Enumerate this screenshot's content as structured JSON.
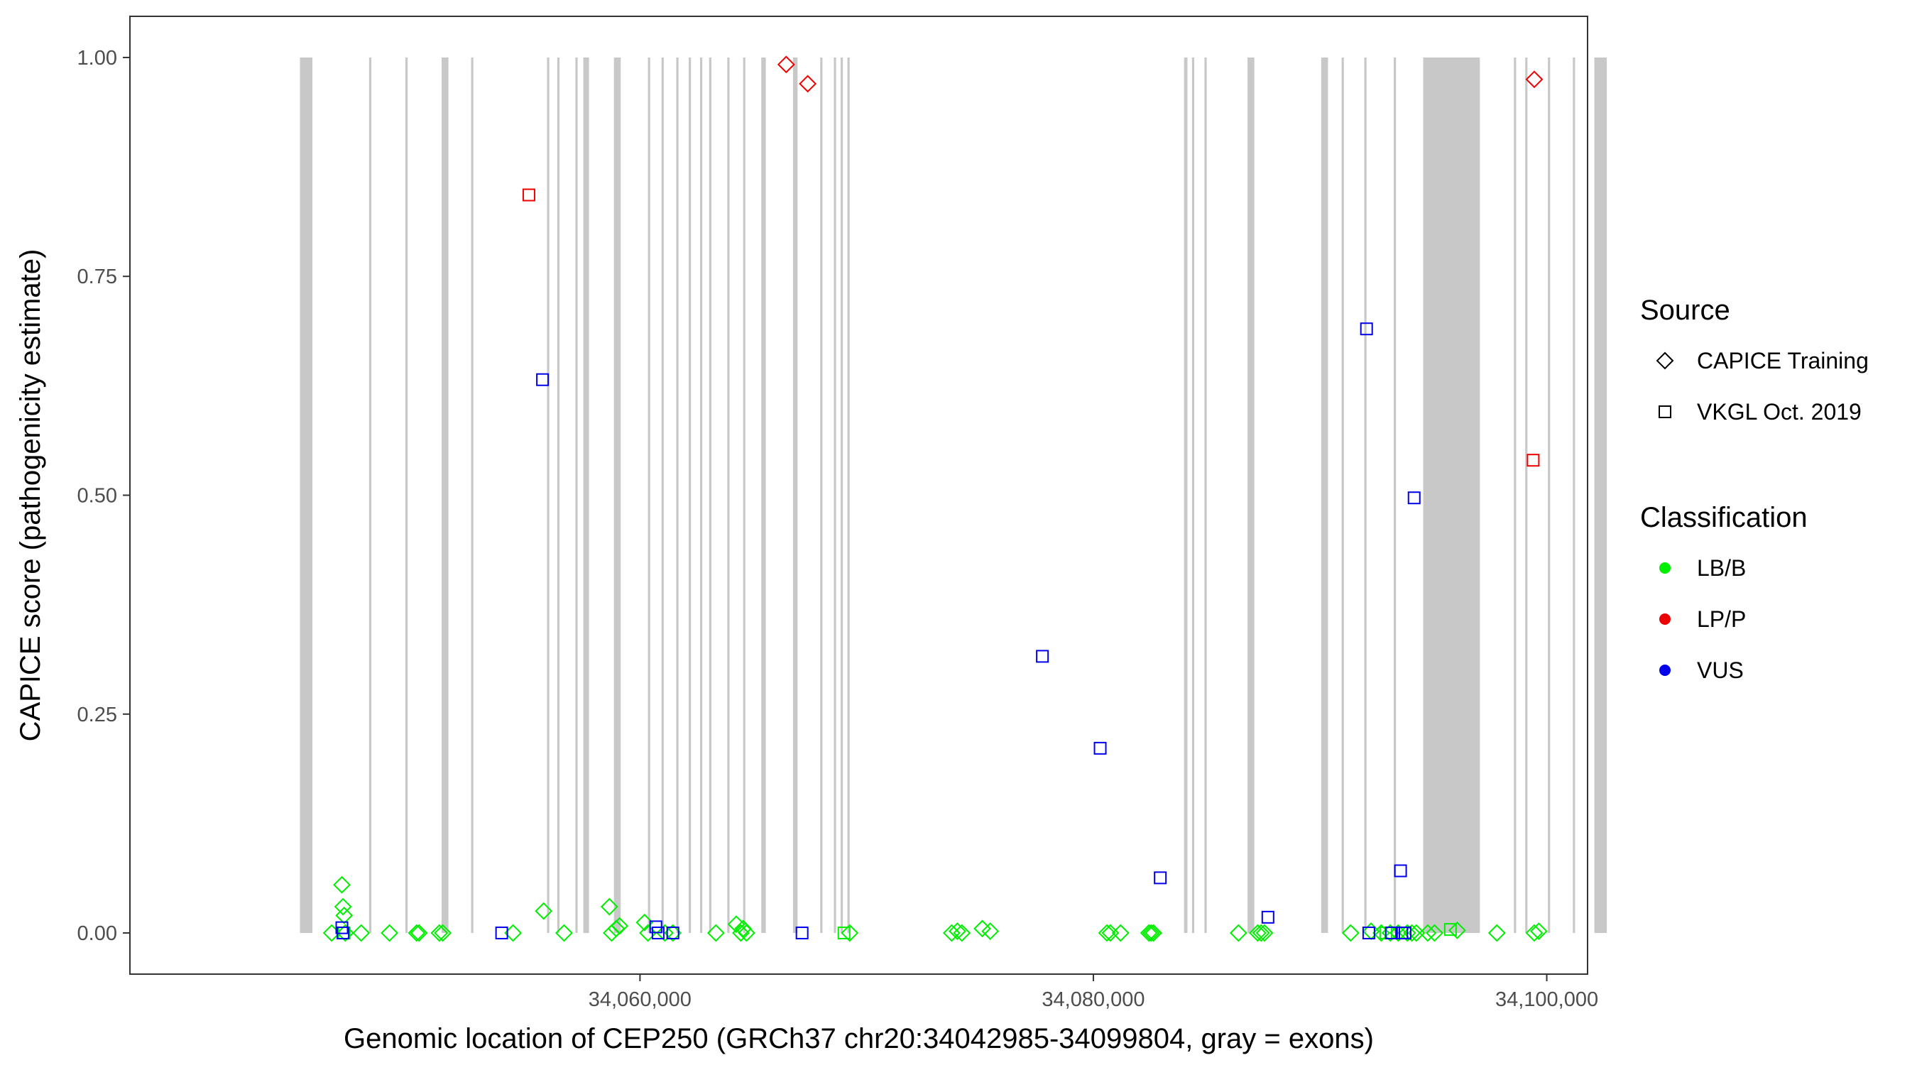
{
  "chart_data": {
    "type": "scatter",
    "xlabel": "Genomic location of CEP250 (GRCh37 chr20:34042985-34099804, gray = exons)",
    "ylabel": "CAPICE score (pathogenicity estimate)",
    "xlim": [
      34037500,
      34101800
    ],
    "ylim": [
      -0.047,
      1.047
    ],
    "x_ticks": [
      34060000,
      34080000,
      34100000
    ],
    "x_tick_labels": [
      "34,060,000",
      "34,080,000",
      "34,100,000"
    ],
    "y_ticks": [
      0,
      0.25,
      0.5,
      0.75,
      1.0
    ],
    "y_tick_labels": [
      "0.00",
      "0.25",
      "0.50",
      "0.75",
      "1.00"
    ],
    "grid": false,
    "legend_position": "right",
    "exons": [
      [
        34045000,
        34045550
      ],
      [
        34048050,
        34048150
      ],
      [
        34049650,
        34049750
      ],
      [
        34051250,
        34051550
      ],
      [
        34052550,
        34052650
      ],
      [
        34055900,
        34056000
      ],
      [
        34056350,
        34056450
      ],
      [
        34057150,
        34057250
      ],
      [
        34057500,
        34057750
      ],
      [
        34058850,
        34059150
      ],
      [
        34060350,
        34060450
      ],
      [
        34060950,
        34061050
      ],
      [
        34061600,
        34061700
      ],
      [
        34062150,
        34062250
      ],
      [
        34062650,
        34062750
      ],
      [
        34063050,
        34063150
      ],
      [
        34063850,
        34063950
      ],
      [
        34064550,
        34064650
      ],
      [
        34065350,
        34065550
      ],
      [
        34066750,
        34066950
      ],
      [
        34067950,
        34068050
      ],
      [
        34068550,
        34068650
      ],
      [
        34068850,
        34068950
      ],
      [
        34069150,
        34069250
      ],
      [
        34084000,
        34084150
      ],
      [
        34084350,
        34084450
      ],
      [
        34084900,
        34085000
      ],
      [
        34086800,
        34087100
      ],
      [
        34090050,
        34090350
      ],
      [
        34090950,
        34091050
      ],
      [
        34091950,
        34092050
      ],
      [
        34093250,
        34093350
      ],
      [
        34094550,
        34097050
      ],
      [
        34098550,
        34098650
      ],
      [
        34099050,
        34099150
      ],
      [
        34100050,
        34100150
      ],
      [
        34101150,
        34101250
      ],
      [
        34102100,
        34102650
      ]
    ],
    "legend_source_title": "Source",
    "legend_source_items": [
      {
        "label": "CAPICE Training",
        "shape": "diamond"
      },
      {
        "label": "VKGL Oct. 2019",
        "shape": "square"
      }
    ],
    "legend_class_title": "Classification",
    "legend_class_items": [
      {
        "label": "LB/B",
        "color": "#00ee00"
      },
      {
        "label": "LP/P",
        "color": "#ee0000"
      },
      {
        "label": "VUS",
        "color": "#0000ee"
      }
    ],
    "series": [
      {
        "source": "CAPICE Training",
        "classification": "LB/B",
        "shape": "diamond",
        "color": "#00ee00",
        "points": [
          [
            34046400,
            0.0
          ],
          [
            34046850,
            0.055
          ],
          [
            34046900,
            0.03
          ],
          [
            34046950,
            0.02
          ],
          [
            34047000,
            0.0
          ],
          [
            34047700,
            0.0
          ],
          [
            34048950,
            0.0
          ],
          [
            34050150,
            0.0
          ],
          [
            34050250,
            0.0
          ],
          [
            34051150,
            0.0
          ],
          [
            34051300,
            0.0
          ],
          [
            34054400,
            0.0
          ],
          [
            34055750,
            0.025
          ],
          [
            34056650,
            0.0
          ],
          [
            34058650,
            0.03
          ],
          [
            34058750,
            0.0
          ],
          [
            34058950,
            0.005
          ],
          [
            34059100,
            0.008
          ],
          [
            34060200,
            0.012
          ],
          [
            34060350,
            0.0
          ],
          [
            34061100,
            0.0
          ],
          [
            34061450,
            0.0
          ],
          [
            34063350,
            0.0
          ],
          [
            34064250,
            0.01
          ],
          [
            34064450,
            0.0
          ],
          [
            34064550,
            0.005
          ],
          [
            34064700,
            0.0
          ],
          [
            34069250,
            0.0
          ],
          [
            34073750,
            0.0
          ],
          [
            34074000,
            0.002
          ],
          [
            34074200,
            0.0
          ],
          [
            34075100,
            0.005
          ],
          [
            34075450,
            0.002
          ],
          [
            34080600,
            0.0
          ],
          [
            34080750,
            0.0
          ],
          [
            34081200,
            0.0
          ],
          [
            34082450,
            0.0
          ],
          [
            34082550,
            0.0
          ],
          [
            34082650,
            0.0
          ],
          [
            34086400,
            0.0
          ],
          [
            34087250,
            0.0
          ],
          [
            34087400,
            0.0
          ],
          [
            34087550,
            0.0
          ],
          [
            34091350,
            0.0
          ],
          [
            34092250,
            0.002
          ],
          [
            34092700,
            0.0
          ],
          [
            34093100,
            0.0
          ],
          [
            34093450,
            0.0
          ],
          [
            34093850,
            0.0
          ],
          [
            34094050,
            0.0
          ],
          [
            34094250,
            0.0
          ],
          [
            34094750,
            0.0
          ],
          [
            34095050,
            0.0
          ],
          [
            34096050,
            0.003
          ],
          [
            34097800,
            0.0
          ],
          [
            34099450,
            0.0
          ],
          [
            34099650,
            0.002
          ]
        ]
      },
      {
        "source": "CAPICE Training",
        "classification": "LP/P",
        "shape": "diamond",
        "color": "#ee0000",
        "points": [
          [
            34066450,
            0.992
          ],
          [
            34067400,
            0.97
          ],
          [
            34099450,
            0.975
          ]
        ]
      },
      {
        "source": "VKGL Oct. 2019",
        "classification": "LB/B",
        "shape": "square",
        "color": "#00ee00",
        "points": [
          [
            34046950,
            0.0
          ],
          [
            34069000,
            0.0
          ],
          [
            34092900,
            0.0
          ],
          [
            34095750,
            0.004
          ]
        ]
      },
      {
        "source": "VKGL Oct. 2019",
        "classification": "LP/P",
        "shape": "square",
        "color": "#ee0000",
        "points": [
          [
            34055100,
            0.843
          ],
          [
            34099400,
            0.54
          ]
        ]
      },
      {
        "source": "VKGL Oct. 2019",
        "classification": "VUS",
        "shape": "square",
        "color": "#0000ee",
        "points": [
          [
            34046850,
            0.006
          ],
          [
            34046900,
            0.0
          ],
          [
            34053900,
            0.0
          ],
          [
            34055700,
            0.632
          ],
          [
            34060700,
            0.007
          ],
          [
            34060800,
            0.0
          ],
          [
            34061450,
            0.0
          ],
          [
            34067150,
            0.0
          ],
          [
            34077750,
            0.316
          ],
          [
            34080300,
            0.211
          ],
          [
            34082950,
            0.063
          ],
          [
            34087700,
            0.018
          ],
          [
            34092050,
            0.69
          ],
          [
            34092150,
            0.0
          ],
          [
            34093150,
            0.0
          ],
          [
            34093550,
            0.071
          ],
          [
            34093600,
            0.0
          ],
          [
            34093750,
            0.0
          ],
          [
            34094150,
            0.497
          ]
        ]
      }
    ]
  }
}
